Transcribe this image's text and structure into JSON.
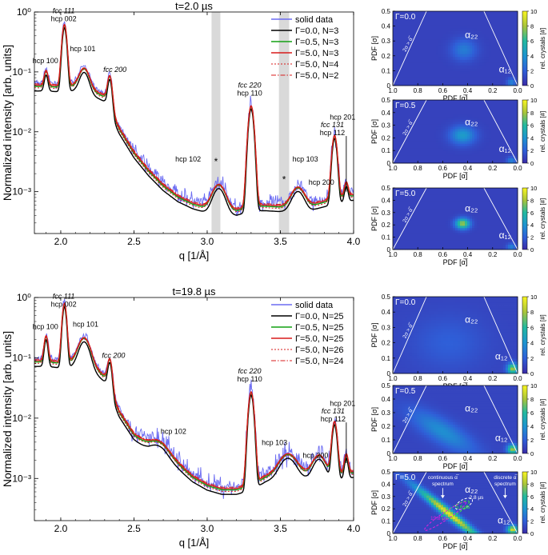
{
  "chart_data": [
    {
      "type": "line",
      "title": "t=2.0 µs",
      "xlabel": "q [1/Å]",
      "ylabel": "Normalized intensity [arb. units]",
      "xlim": [
        1.82,
        4.0
      ],
      "ylim": [
        0.0002,
        1.0
      ],
      "yscale": "log",
      "xticks": [
        "2.0",
        "2.5",
        "3.0",
        "3.5",
        "4.0"
      ],
      "yticks": [
        "10⁻³",
        "10⁻²",
        "10⁻¹",
        "10⁰"
      ],
      "legend_position": "top-right",
      "shaded_regions": [
        [
          3.03,
          3.09
        ],
        [
          3.49,
          3.56
        ]
      ],
      "markers": [
        {
          "text": "*",
          "x": 3.06,
          "y": 0.0028
        },
        {
          "text": "*",
          "x": 3.525,
          "y": 0.0014
        }
      ],
      "vline": {
        "x": 3.95,
        "y0": 0.001,
        "y1": 0.0085
      },
      "peak_labels": [
        {
          "lines": [
            "hcp 100"
          ],
          "x": 1.895,
          "y": 0.14,
          "italic": false
        },
        {
          "lines": [
            "fcc 111",
            "hcp 002"
          ],
          "x": 2.02,
          "y": 0.95,
          "italic_first": true
        },
        {
          "lines": [
            "hcp 101"
          ],
          "x": 2.15,
          "y": 0.22,
          "italic": false
        },
        {
          "lines": [
            "fcc 200"
          ],
          "x": 2.37,
          "y": 0.1,
          "italic": true
        },
        {
          "lines": [
            "fcc 220",
            "hcp 110"
          ],
          "x": 3.29,
          "y": 0.055,
          "italic_first": true
        },
        {
          "lines": [
            "hcp 102"
          ],
          "x": 2.87,
          "y": 0.0032,
          "italic": false
        },
        {
          "lines": [
            "hcp 103"
          ],
          "x": 3.67,
          "y": 0.0032,
          "italic": false
        },
        {
          "lines": [
            "hcp 200"
          ],
          "x": 3.78,
          "y": 0.0013,
          "italic": false
        },
        {
          "lines": [
            "fcc 131",
            "hcp 112"
          ],
          "x": 3.855,
          "y": 0.012,
          "italic_first": true
        },
        {
          "lines": [
            "hcp 201"
          ],
          "x": 3.925,
          "y": 0.016,
          "italic": false
        }
      ],
      "series": [
        {
          "name": "solid data",
          "color": "#6b6bf2",
          "style": "noisy"
        },
        {
          "name": "Γ=0.0, N=3",
          "color": "#000000",
          "style": "solid"
        },
        {
          "name": "Γ=0.5, N=3",
          "color": "#12a012",
          "style": "solid"
        },
        {
          "name": "Γ=5.0, N=3",
          "color": "#d81b1b",
          "style": "solid"
        },
        {
          "name": "Γ=5.0, N=4",
          "color": "#d81b1b",
          "style": "dotted"
        },
        {
          "name": "Γ=5.0, N=2",
          "color": "#d81b1b",
          "style": "dashdot"
        }
      ],
      "model": {
        "baseline": {
          "q": [
            1.82,
            1.9,
            2.0,
            2.1,
            2.2,
            2.3,
            2.4,
            2.5,
            2.6,
            2.7,
            2.8,
            2.9,
            3.0,
            3.1,
            3.2,
            3.3,
            3.4,
            3.5,
            3.6,
            3.7,
            3.8,
            3.9,
            4.0
          ],
          "I": [
            0.06,
            0.06,
            0.058,
            0.06,
            0.052,
            0.04,
            0.0115,
            0.0046,
            0.0023,
            0.0013,
            0.00085,
            0.00065,
            0.00055,
            0.0005,
            0.0005,
            0.0006,
            0.0006,
            0.00058,
            0.00058,
            0.0006,
            0.0007,
            0.0008,
            0.0009
          ]
        },
        "peaks": [
          {
            "q": 1.9,
            "amp": 0.045,
            "w": 0.012
          },
          {
            "q": 2.025,
            "amp": 0.55,
            "w": 0.014
          },
          {
            "q": 2.16,
            "amp": 0.06,
            "w": 0.03
          },
          {
            "q": 2.335,
            "amp": 0.06,
            "w": 0.014
          },
          {
            "q": 3.3,
            "amp": 0.026,
            "w": 0.016
          },
          {
            "q": 3.08,
            "amp": 0.0008,
            "w": 0.04
          },
          {
            "q": 3.62,
            "amp": 0.0006,
            "w": 0.04
          },
          {
            "q": 3.87,
            "amp": 0.0078,
            "w": 0.015
          },
          {
            "q": 3.95,
            "amp": 0.0006,
            "w": 0.012
          }
        ],
        "noise": 0.22
      }
    },
    {
      "type": "line",
      "title": "t=19.8 µs",
      "xlabel": "q [1/Å]",
      "ylabel": "Normalized intensity [arb. units]",
      "xlim": [
        1.82,
        4.0
      ],
      "ylim": [
        0.0002,
        1.0
      ],
      "yscale": "log",
      "xticks": [
        "2.0",
        "2.5",
        "3.0",
        "3.5",
        "4.0"
      ],
      "yticks": [
        "10⁻³",
        "10⁻²",
        "10⁻¹",
        "10⁰"
      ],
      "legend_position": "top-right",
      "shaded_regions": [],
      "markers": [],
      "vline": {
        "x": 3.95,
        "y0": 0.0018,
        "y1": 0.0085
      },
      "peak_labels": [
        {
          "lines": [
            "hcp 100"
          ],
          "x": 1.895,
          "y": 0.3,
          "italic": false
        },
        {
          "lines": [
            "fcc 111",
            "hcp 002"
          ],
          "x": 2.02,
          "y": 0.95,
          "italic_first": true
        },
        {
          "lines": [
            "hcp 101"
          ],
          "x": 2.17,
          "y": 0.33,
          "italic": false
        },
        {
          "lines": [
            "fcc 200"
          ],
          "x": 2.36,
          "y": 0.1,
          "italic": true
        },
        {
          "lines": [
            "fcc 220",
            "hcp 110"
          ],
          "x": 3.29,
          "y": 0.055,
          "italic_first": true
        },
        {
          "lines": [
            "hcp 102"
          ],
          "x": 2.77,
          "y": 0.0055,
          "italic": false
        },
        {
          "lines": [
            "hcp 103"
          ],
          "x": 3.46,
          "y": 0.0036,
          "italic": false
        },
        {
          "lines": [
            "hcp 200"
          ],
          "x": 3.74,
          "y": 0.0022,
          "italic": false
        },
        {
          "lines": [
            "fcc 131",
            "hcp 112"
          ],
          "x": 3.86,
          "y": 0.012,
          "italic_first": true
        },
        {
          "lines": [
            "hcp 201"
          ],
          "x": 3.925,
          "y": 0.016,
          "italic": false
        }
      ],
      "series": [
        {
          "name": "solid data",
          "color": "#6b6bf2",
          "style": "noisy"
        },
        {
          "name": "Γ=0.0, N=25",
          "color": "#000000",
          "style": "solid"
        },
        {
          "name": "Γ=0.5, N=25",
          "color": "#12a012",
          "style": "solid"
        },
        {
          "name": "Γ=5.0, N=25",
          "color": "#d81b1b",
          "style": "solid"
        },
        {
          "name": "Γ=5.0, N=26",
          "color": "#d81b1b",
          "style": "dotted"
        },
        {
          "name": "Γ=5.0, N=24",
          "color": "#d81b1b",
          "style": "dashdot"
        }
      ],
      "model": {
        "baseline": {
          "q": [
            1.82,
            1.9,
            2.0,
            2.1,
            2.2,
            2.3,
            2.4,
            2.5,
            2.6,
            2.7,
            2.8,
            2.9,
            3.0,
            3.1,
            3.2,
            3.3,
            3.4,
            3.5,
            3.6,
            3.7,
            3.8,
            3.9,
            4.0
          ],
          "I": [
            0.09,
            0.09,
            0.085,
            0.09,
            0.08,
            0.05,
            0.013,
            0.0055,
            0.0035,
            0.0028,
            0.0018,
            0.0011,
            0.0008,
            0.00068,
            0.00068,
            0.0008,
            0.0011,
            0.0013,
            0.0014,
            0.0012,
            0.0011,
            0.0012,
            0.0013
          ]
        },
        "peaks": [
          {
            "q": 1.9,
            "amp": 0.14,
            "w": 0.012
          },
          {
            "q": 2.025,
            "amp": 0.7,
            "w": 0.013
          },
          {
            "q": 2.16,
            "amp": 0.13,
            "w": 0.035
          },
          {
            "q": 2.335,
            "amp": 0.065,
            "w": 0.014
          },
          {
            "q": 3.3,
            "amp": 0.026,
            "w": 0.016
          },
          {
            "q": 2.66,
            "amp": 0.0012,
            "w": 0.06
          },
          {
            "q": 3.55,
            "amp": 0.0012,
            "w": 0.05
          },
          {
            "q": 3.765,
            "amp": 0.0013,
            "w": 0.04
          },
          {
            "q": 3.87,
            "amp": 0.0075,
            "w": 0.015
          },
          {
            "q": 3.95,
            "amp": 0.0013,
            "w": 0.012
          }
        ],
        "noise": 0.28
      }
    },
    {
      "type": "heatmap",
      "annotation": "Γ=0.0",
      "xlabel": "PDF [α̅]",
      "ylabel": "PDF [σ]",
      "xlim": [
        1.0,
        0.0
      ],
      "ylim": [
        0.0,
        0.5
      ],
      "xticks": [
        "1.0",
        "0.8",
        "0.6",
        "0.4",
        "0.2",
        "0.0"
      ],
      "yticks": [
        "0",
        "0.1",
        "0.2",
        "0.3",
        "0.4",
        "0.5"
      ],
      "colorbar": {
        "label": "rel. crystals [#]",
        "range": [
          0,
          10
        ],
        "ticks": [
          "0",
          "2",
          "4",
          "6",
          "8",
          "10"
        ]
      },
      "boundary_label": "2σ > α̅",
      "labels": [
        {
          "text": "α₂₂",
          "x": 0.37,
          "y": 0.32
        },
        {
          "text": "α₁₂",
          "x": 0.1,
          "y": 0.09
        }
      ],
      "blobs": [
        {
          "x": 0.43,
          "y": 0.24,
          "sx": 0.07,
          "sy": 0.05,
          "amp": 2.2,
          "rot": 0
        },
        {
          "x": 0.05,
          "y": 0.02,
          "sx": 0.025,
          "sy": 0.02,
          "amp": 2.5,
          "rot": 0
        }
      ],
      "background": 0.9
    },
    {
      "type": "heatmap",
      "annotation": "Γ=0.5",
      "xlabel": "PDF [α̅]",
      "ylabel": "PDF [σ]",
      "xlim": [
        1.0,
        0.0
      ],
      "ylim": [
        0.0,
        0.5
      ],
      "xticks": [
        "1.0",
        "0.8",
        "0.6",
        "0.4",
        "0.2",
        "0.0"
      ],
      "yticks": [
        "0",
        "0.1",
        "0.2",
        "0.3",
        "0.4",
        "0.5"
      ],
      "colorbar": {
        "label": "rel. crystals [#]",
        "range": [
          0,
          10
        ],
        "ticks": [
          "0",
          "2",
          "4",
          "6",
          "8",
          "10"
        ]
      },
      "boundary_label": "2σ > α̅",
      "labels": [
        {
          "text": "α₂₂",
          "x": 0.37,
          "y": 0.3
        },
        {
          "text": "α₁₂",
          "x": 0.1,
          "y": 0.09
        }
      ],
      "blobs": [
        {
          "x": 0.44,
          "y": 0.22,
          "sx": 0.07,
          "sy": 0.05,
          "amp": 3.5,
          "rot": 0
        },
        {
          "x": 0.05,
          "y": 0.02,
          "sx": 0.025,
          "sy": 0.02,
          "amp": 2.5,
          "rot": 0
        }
      ],
      "background": 0.9
    },
    {
      "type": "heatmap",
      "annotation": "Γ=5.0",
      "xlabel": "PDF [α̅]",
      "ylabel": "PDF [σ]",
      "xlim": [
        1.0,
        0.0
      ],
      "ylim": [
        0.0,
        0.5
      ],
      "xticks": [
        "1.0",
        "0.8",
        "0.6",
        "0.4",
        "0.2",
        "0.0"
      ],
      "yticks": [
        "0",
        "0.1",
        "0.2",
        "0.3",
        "0.4",
        "0.5"
      ],
      "colorbar": {
        "label": "rel. crystals [#]",
        "range": [
          0,
          10
        ],
        "ticks": [
          "0",
          "2",
          "4",
          "6",
          "8",
          "10"
        ]
      },
      "boundary_label": "2σ > α̅",
      "labels": [
        {
          "text": "α₂₂",
          "x": 0.37,
          "y": 0.31
        },
        {
          "text": "α₁₂",
          "x": 0.1,
          "y": 0.09
        }
      ],
      "blobs": [
        {
          "x": 0.44,
          "y": 0.21,
          "sx": 0.04,
          "sy": 0.03,
          "amp": 7,
          "rot": 0
        },
        {
          "x": 0.05,
          "y": 0.02,
          "sx": 0.025,
          "sy": 0.02,
          "amp": 2.5,
          "rot": 0
        }
      ],
      "background": 0.9
    },
    {
      "type": "heatmap",
      "annotation": "Γ=0.0",
      "xlabel": "PDF [α̅]",
      "ylabel": "PDF [σ]",
      "xlim": [
        1.0,
        0.0
      ],
      "ylim": [
        0.0,
        0.5
      ],
      "xticks": [
        "1.0",
        "0.8",
        "0.6",
        "0.4",
        "0.2",
        "0.0"
      ],
      "yticks": [
        "0",
        "0.1",
        "0.2",
        "0.3",
        "0.4",
        "0.5"
      ],
      "colorbar": {
        "label": "rel. crystals [#]",
        "range": [
          0,
          10
        ],
        "ticks": [
          "0",
          "2",
          "4",
          "6",
          "8",
          "10"
        ]
      },
      "boundary_label": "2σ > α̅",
      "labels": [
        {
          "text": "α₂₂",
          "x": 0.37,
          "y": 0.33
        },
        {
          "text": "α₁₂",
          "x": 0.13,
          "y": 0.09
        }
      ],
      "blobs": [
        {
          "x": 0.55,
          "y": 0.2,
          "sx": 0.2,
          "sy": 0.12,
          "amp": 1.0,
          "rot": 0
        },
        {
          "x": 0.04,
          "y": 0.03,
          "sx": 0.03,
          "sy": 0.025,
          "amp": 7,
          "rot": 0
        }
      ],
      "background": 1.0
    },
    {
      "type": "heatmap",
      "annotation": "Γ=0.5",
      "xlabel": "PDF [α̅]",
      "ylabel": "PDF [σ]",
      "xlim": [
        1.0,
        0.0
      ],
      "ylim": [
        0.0,
        0.5
      ],
      "xticks": [
        "1.0",
        "0.8",
        "0.6",
        "0.4",
        "0.2",
        "0.0"
      ],
      "yticks": [
        "0",
        "0.1",
        "0.2",
        "0.3",
        "0.4",
        "0.5"
      ],
      "colorbar": {
        "label": "rel. crystals [#]",
        "range": [
          0,
          10
        ],
        "ticks": [
          "0",
          "2",
          "4",
          "6",
          "8",
          "10"
        ]
      },
      "boundary_label": "2σ > α̅",
      "labels": [
        {
          "text": "α₂₂",
          "x": 0.37,
          "y": 0.31
        },
        {
          "text": "α₁₂",
          "x": 0.13,
          "y": 0.09
        }
      ],
      "blobs": [
        {
          "x": 0.6,
          "y": 0.16,
          "sx": 0.2,
          "sy": 0.06,
          "amp": 2.8,
          "rot": 0.5
        },
        {
          "x": 0.04,
          "y": 0.03,
          "sx": 0.03,
          "sy": 0.025,
          "amp": 7,
          "rot": 0
        }
      ],
      "background": 1.0
    },
    {
      "type": "heatmap",
      "annotation": "Γ=5.0",
      "xlabel": "PDF [α̅]",
      "ylabel": "PDF [σ]",
      "xlim": [
        1.0,
        0.0
      ],
      "ylim": [
        0.0,
        0.5
      ],
      "xticks": [
        "1.0",
        "0.8",
        "0.6",
        "0.4",
        "0.2",
        "0.0"
      ],
      "yticks": [
        "0",
        "0.1",
        "0.2",
        "0.3",
        "0.4",
        "0.5"
      ],
      "colorbar": {
        "label": "rel. crystals [#]",
        "range": [
          0,
          10
        ],
        "ticks": [
          "0",
          "2",
          "4",
          "6",
          "8",
          "10"
        ]
      },
      "boundary_label": "2σ > α̅",
      "labels": [
        {
          "text": "α₂₂",
          "x": 0.37,
          "y": 0.33
        },
        {
          "text": "α₁₂",
          "x": 0.11,
          "y": 0.08
        }
      ],
      "blobs": [
        {
          "x": 0.55,
          "y": 0.16,
          "sx": 0.24,
          "sy": 0.025,
          "amp": 8.5,
          "rot": 0.68
        },
        {
          "x": 0.04,
          "y": 0.03,
          "sx": 0.03,
          "sy": 0.025,
          "amp": 8,
          "rot": 0
        }
      ],
      "background": 1.0,
      "annotations": [
        {
          "lines": [
            "continuous α̅",
            "spectrum"
          ],
          "x": 0.6,
          "y": 0.44,
          "color": "#ffffff"
        },
        {
          "lines": [
            "discrete α̅",
            "spectrum"
          ],
          "x": 0.1,
          "y": 0.44,
          "color": "#ffffff"
        }
      ],
      "contours": [
        {
          "label": "2.8 µs",
          "color": "#ffffff",
          "label_x": 0.33,
          "label_y": 0.28
        },
        {
          "label": "5.6 µs",
          "color": "#3aee3a",
          "label_x": 0.44,
          "label_y": 0.2
        },
        {
          "label": "19.8 µs",
          "color": "#e020e0",
          "label_x": 0.63,
          "label_y": 0.11
        }
      ]
    }
  ]
}
